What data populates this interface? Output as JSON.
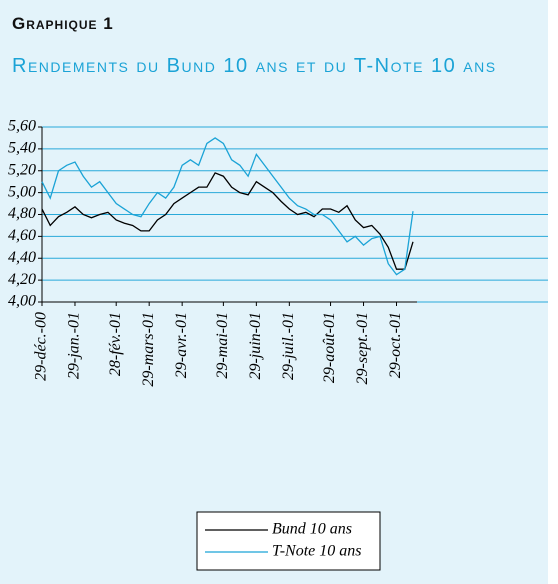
{
  "header": "Graphique 1",
  "chart_data": {
    "type": "line",
    "title": "Rendements du Bund 10 ans et du T-Note 10 ans",
    "categories": [
      "29-déc.-00",
      null,
      null,
      null,
      "29-jan.-01",
      null,
      null,
      null,
      null,
      "28-fév.-01",
      null,
      null,
      null,
      "29-mars-01",
      null,
      null,
      null,
      "29-avr.-01",
      null,
      null,
      null,
      null,
      "29-mai-01",
      null,
      null,
      null,
      "29-juin-01",
      null,
      null,
      null,
      "29-juil.-01",
      null,
      null,
      null,
      null,
      "29-août-01",
      null,
      null,
      null,
      "29-sept.-01",
      null,
      null,
      null,
      "29-oct.-01",
      null,
      null
    ],
    "series": [
      {
        "name": "Bund 10 ans",
        "color": "#000000",
        "values": [
          4.85,
          4.7,
          4.78,
          4.82,
          4.87,
          4.8,
          4.77,
          4.8,
          4.82,
          4.75,
          4.72,
          4.7,
          4.65,
          4.65,
          4.75,
          4.8,
          4.9,
          4.95,
          5.0,
          5.05,
          5.05,
          5.18,
          5.15,
          5.05,
          5.0,
          4.98,
          5.1,
          5.05,
          5.0,
          4.92,
          4.85,
          4.8,
          4.82,
          4.78,
          4.85,
          4.85,
          4.82,
          4.88,
          4.75,
          4.68,
          4.7,
          4.62,
          4.5,
          4.3,
          4.3,
          4.55
        ]
      },
      {
        "name": "T-Note 10 ans",
        "color": "#1ba3d6",
        "values": [
          5.1,
          4.95,
          5.2,
          5.25,
          5.28,
          5.15,
          5.05,
          5.1,
          5.0,
          4.9,
          4.85,
          4.8,
          4.78,
          4.9,
          5.0,
          4.95,
          5.05,
          5.25,
          5.3,
          5.25,
          5.45,
          5.5,
          5.45,
          5.3,
          5.25,
          5.15,
          5.35,
          5.25,
          5.15,
          5.05,
          4.95,
          4.88,
          4.85,
          4.8,
          4.8,
          4.75,
          4.65,
          4.55,
          4.6,
          4.52,
          4.58,
          4.6,
          4.35,
          4.25,
          4.3,
          4.83
        ]
      }
    ],
    "ylim": [
      4.0,
      5.6
    ],
    "yticks": [
      {
        "value": 4.0,
        "label": "4,00"
      },
      {
        "value": 4.2,
        "label": "4,20"
      },
      {
        "value": 4.4,
        "label": "4,40"
      },
      {
        "value": 4.6,
        "label": "4,60"
      },
      {
        "value": 4.8,
        "label": "4,80"
      },
      {
        "value": 5.0,
        "label": "5,00"
      },
      {
        "value": 5.2,
        "label": "5,20"
      },
      {
        "value": 5.4,
        "label": "5,40"
      },
      {
        "value": 5.6,
        "label": "5,60"
      }
    ],
    "grid": true,
    "grid_color": "#29a9d9",
    "legend": "bottom"
  }
}
